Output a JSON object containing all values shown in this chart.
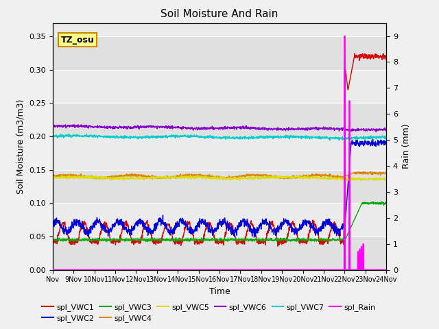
{
  "title": "Soil Moisture And Rain",
  "xlabel": "Time",
  "ylabel_left": "Soil Moisture (m3/m3)",
  "ylabel_right": "Rain (mm)",
  "site_label": "TZ_osu",
  "ylim_left": [
    0,
    0.37
  ],
  "ylim_right": [
    0,
    9.5
  ],
  "yticks_left": [
    0.0,
    0.05,
    0.1,
    0.15,
    0.2,
    0.25,
    0.3,
    0.35
  ],
  "yticks_right": [
    0.0,
    1.0,
    2.0,
    3.0,
    4.0,
    5.0,
    6.0,
    7.0,
    8.0,
    9.0
  ],
  "xtick_labels": [
    "Nov",
    "9Nov",
    "10Nov",
    "11Nov",
    "12Nov",
    "13Nov",
    "14Nov",
    "15Nov",
    "16Nov",
    "17Nov",
    "18Nov",
    "19Nov",
    "20Nov",
    "21Nov",
    "22Nov",
    "23Nov",
    "24Nov"
  ],
  "colors": {
    "VWC1": "#dd0000",
    "VWC2": "#0000dd",
    "VWC3": "#00aa00",
    "VWC4": "#dd8800",
    "VWC5": "#dddd00",
    "VWC6": "#8800cc",
    "VWC7": "#00cccc",
    "Rain": "#ff00ff"
  },
  "background_color": "#f0f0f0",
  "plot_bg_light": "#eeeeee",
  "plot_bg_dark": "#dddddd"
}
